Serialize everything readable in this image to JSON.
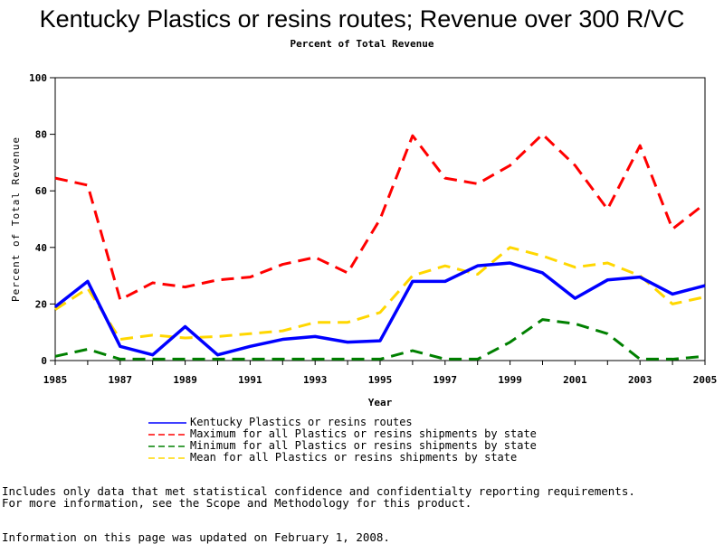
{
  "chart_data": {
    "type": "line",
    "title": "Kentucky Plastics or resins routes; Revenue over 300 R/VC",
    "subtitle": "Percent of Total Revenue",
    "xlabel": "Year",
    "ylabel": "Percent of Total Revenue",
    "xlim": [
      1985,
      2005
    ],
    "ylim": [
      0,
      100
    ],
    "x_ticks": [
      "1985",
      "1987",
      "1989",
      "1991",
      "1993",
      "1995",
      "1997",
      "1999",
      "2001",
      "2003",
      "2005"
    ],
    "y_ticks": [
      "0",
      "20",
      "40",
      "60",
      "80",
      "100"
    ],
    "x": [
      1985,
      1986,
      1987,
      1988,
      1989,
      1990,
      1991,
      1992,
      1993,
      1994,
      1995,
      1996,
      1997,
      1998,
      1999,
      2000,
      2001,
      2002,
      2003,
      2004,
      2005
    ],
    "series": [
      {
        "name": "Kentucky Plastics or resins routes",
        "color": "#0000ff",
        "style": "solid",
        "values": [
          19,
          28,
          5,
          2,
          12,
          2,
          5,
          7.5,
          8.5,
          6.5,
          7,
          28,
          28,
          33.5,
          34.5,
          31,
          22,
          28.5,
          29.5,
          23.5,
          26.5
        ]
      },
      {
        "name": "Maximum for all Plastics or resins shipments by state",
        "color": "#ff0000",
        "style": "dashed",
        "values": [
          64.5,
          62,
          21.5,
          27.5,
          26,
          28.5,
          29.5,
          34,
          36.5,
          31,
          50,
          79.5,
          64.5,
          62.5,
          69,
          80,
          69,
          53.5,
          76,
          46.5,
          55.5
        ]
      },
      {
        "name": "Minimum for all Plastics or resins shipments by state",
        "color": "#008000",
        "style": "dashed",
        "values": [
          1.5,
          4,
          0.5,
          0.5,
          0.5,
          0.5,
          0.5,
          0.5,
          0.5,
          0.5,
          0.5,
          3.5,
          0.5,
          0.5,
          6.5,
          14.5,
          13,
          9.5,
          0.5,
          0.5,
          1.5
        ]
      },
      {
        "name": "Mean for all Plastics or resins shipments by state",
        "color": "#ffd700",
        "style": "dashed",
        "values": [
          18,
          25.5,
          7.5,
          9,
          8,
          8.5,
          9.5,
          10.5,
          13.5,
          13.5,
          17,
          30,
          33.5,
          30.5,
          40,
          37,
          33,
          34.5,
          30,
          20,
          22.5
        ]
      }
    ],
    "legend_position": "bottom",
    "grid": false
  },
  "notes": {
    "line1": "Includes only data that met statistical confidence and confidentialty reporting requirements.",
    "line2": "For more information, see the Scope and Methodology for this product.",
    "updated": "Information on this page was updated on February 1, 2008."
  }
}
